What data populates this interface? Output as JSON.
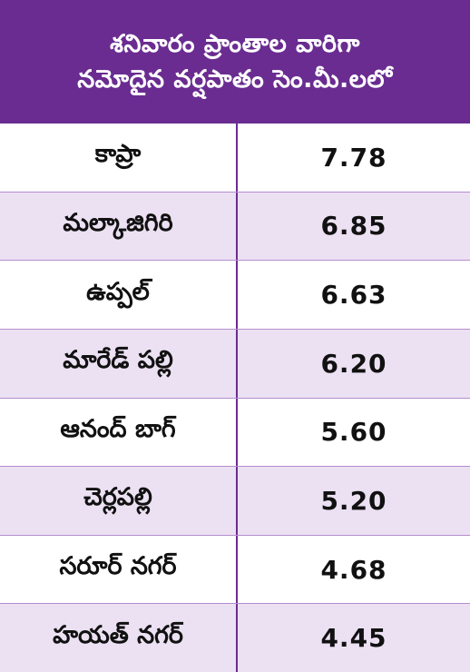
{
  "header": {
    "line1": "శనివారం ప్రాంతాల వారిగా",
    "line2": "నమోదైన వర్షపాతం సెం.మీ.లలో"
  },
  "rows": [
    {
      "area": "కాప్రా",
      "value": "7.78"
    },
    {
      "area": "మల్కాజిగిరి",
      "value": "6.85"
    },
    {
      "area": "ఉప్పల్",
      "value": "6.63"
    },
    {
      "area": "మారేడ్ పల్లి",
      "value": "6.20"
    },
    {
      "area": "ఆనంద్ బాగ్",
      "value": "5.60"
    },
    {
      "area": "చెర్లపల్లి",
      "value": "5.20"
    },
    {
      "area": "సరూర్ నగర్",
      "value": "4.68"
    },
    {
      "area": "హయత్ నగర్",
      "value": "4.45"
    }
  ],
  "colors": {
    "header_bg": "#6a2c91",
    "header_text": "#ffffff",
    "row_alt_bg": "#ece1f3",
    "divider": "#6a2c91"
  }
}
